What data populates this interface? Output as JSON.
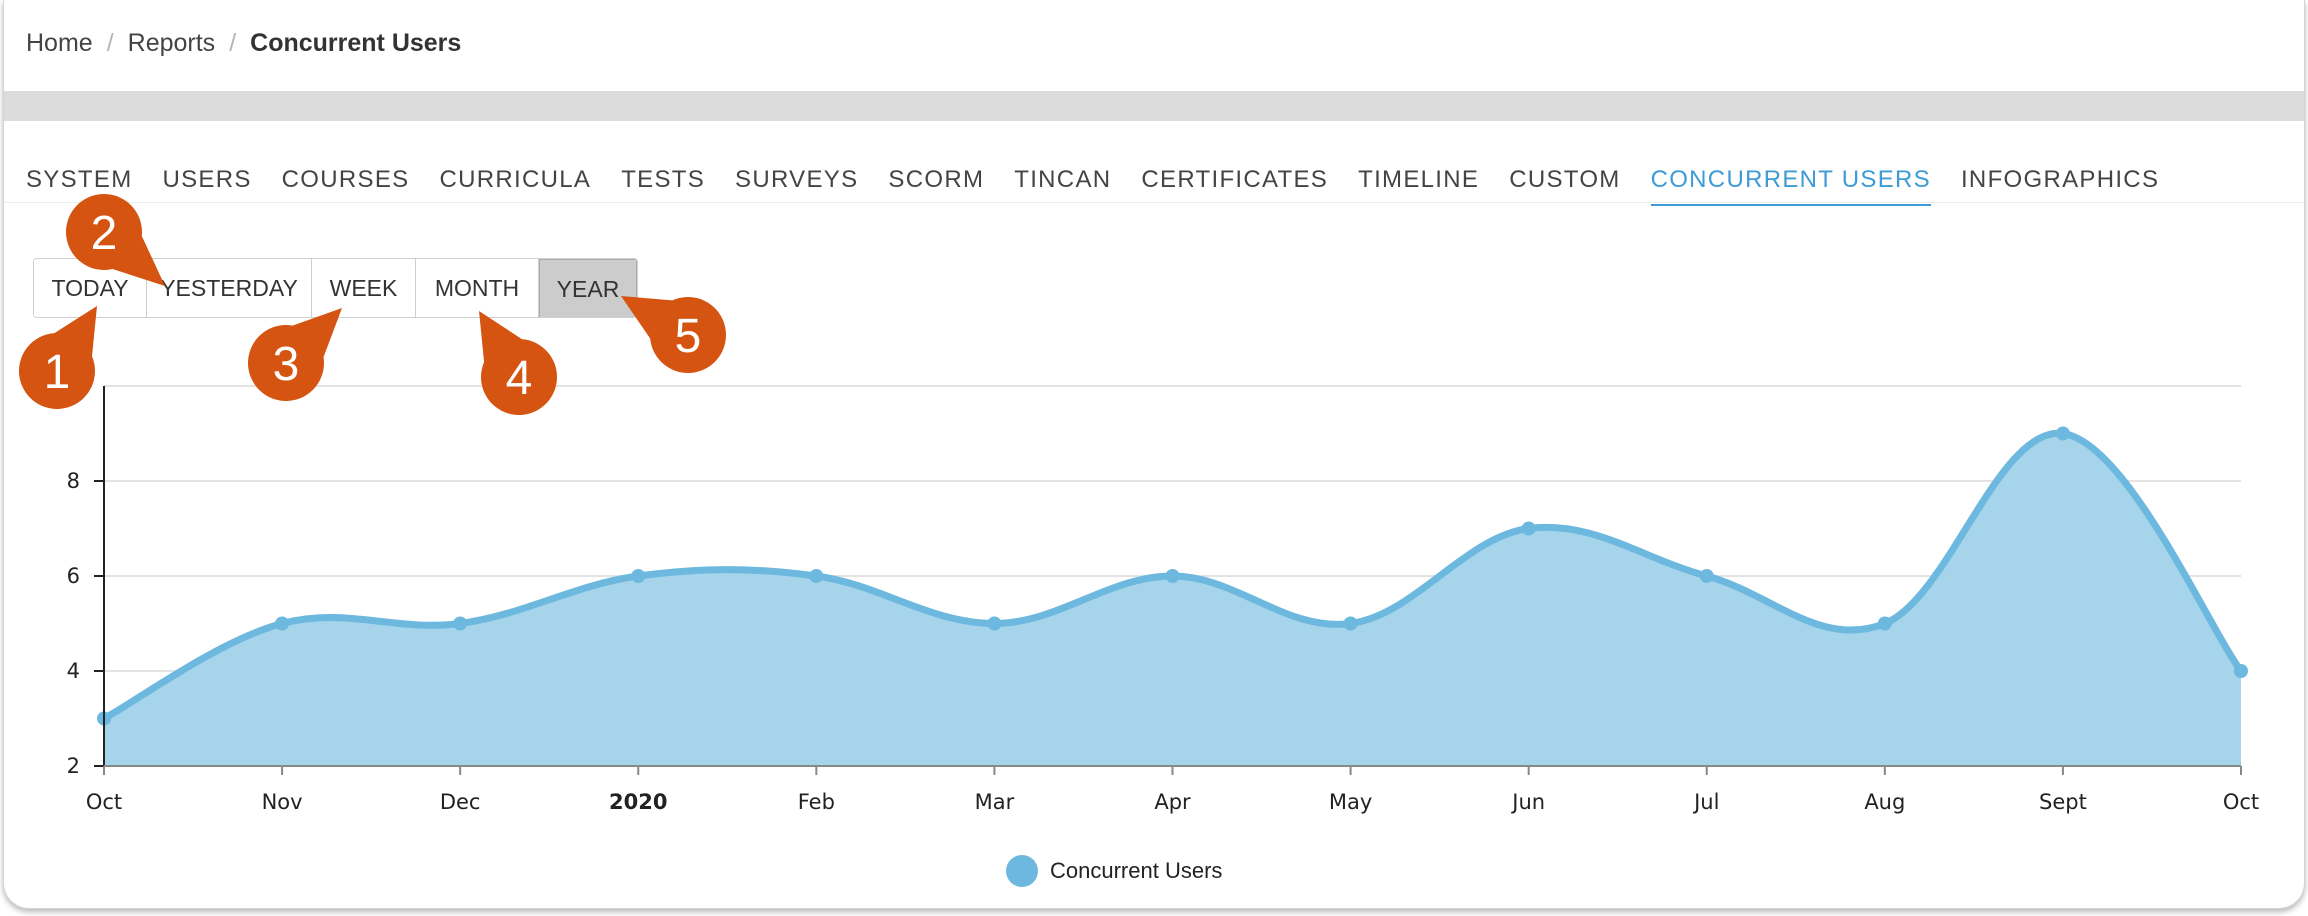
{
  "breadcrumb": {
    "items": [
      "Home",
      "Reports"
    ],
    "current": "Concurrent Users",
    "separator": "/"
  },
  "tabs": [
    {
      "label": "SYSTEM"
    },
    {
      "label": "USERS"
    },
    {
      "label": "COURSES"
    },
    {
      "label": "CURRICULA"
    },
    {
      "label": "TESTS"
    },
    {
      "label": "SURVEYS"
    },
    {
      "label": "SCORM"
    },
    {
      "label": "TINCAN"
    },
    {
      "label": "CERTIFICATES"
    },
    {
      "label": "TIMELINE"
    },
    {
      "label": "CUSTOM"
    },
    {
      "label": "CONCURRENT USERS",
      "active": true
    },
    {
      "label": "INFOGRAPHICS"
    }
  ],
  "period_buttons": [
    {
      "label": "TODAY"
    },
    {
      "label": "YESTERDAY"
    },
    {
      "label": "WEEK"
    },
    {
      "label": "MONTH"
    },
    {
      "label": "YEAR",
      "active": true
    }
  ],
  "callouts": [
    "1",
    "2",
    "3",
    "4",
    "5"
  ],
  "colors": {
    "accent": "#3d9bd6",
    "series_line": "#6db8de",
    "series_fill": "#a6d4ea",
    "callout": "#d65411"
  },
  "legend": {
    "label": "Concurrent Users"
  },
  "chart_data": {
    "type": "area",
    "categories": [
      "Oct",
      "Nov",
      "Dec",
      "2020",
      "Feb",
      "Mar",
      "Apr",
      "May",
      "Jun",
      "Jul",
      "Aug",
      "Sept",
      "Oct"
    ],
    "bold_categories": [
      "2020"
    ],
    "series": [
      {
        "name": "Concurrent Users",
        "values": [
          3,
          5,
          5,
          6,
          6,
          5,
          6,
          5,
          7,
          6,
          5,
          9,
          4
        ]
      }
    ],
    "y_ticks": [
      2,
      4,
      6,
      8
    ],
    "ylim": [
      2,
      10
    ],
    "grid": true,
    "legend_position": "bottom-center"
  }
}
